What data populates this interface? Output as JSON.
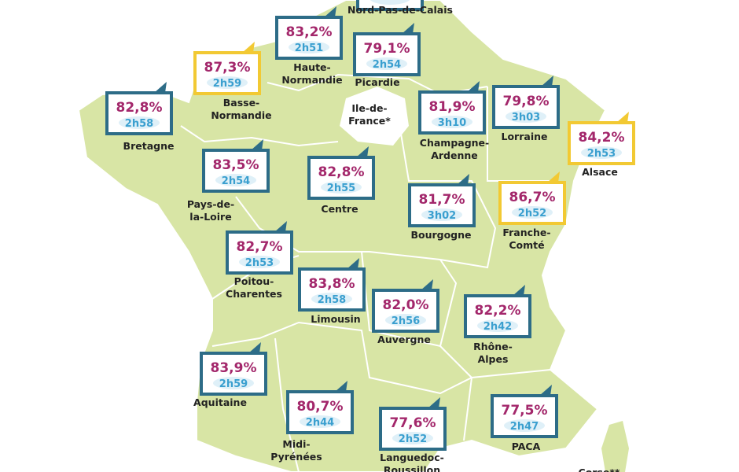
{
  "regions": [
    {
      "name_lines": [
        "Nord-Pas-de-Calais"
      ],
      "frame_color": "#2d6c87"
    },
    {
      "name_lines": [
        "Haute-",
        "Normandie"
      ],
      "percent": "83,2%",
      "time": "2h51",
      "frame_color": "#2d6c87"
    },
    {
      "name_lines": [
        "Picardie"
      ],
      "percent": "79,1%",
      "time": "2h54",
      "frame_color": "#2d6c87"
    },
    {
      "name_lines": [
        "Basse-",
        "Normandie"
      ],
      "percent": "87,3%",
      "time": "2h59",
      "frame_color": "#f2c933"
    },
    {
      "name_lines": [
        "Bretagne"
      ],
      "percent": "82,8%",
      "time": "2h58",
      "frame_color": "#2d6c87"
    },
    {
      "name_lines": [
        "Ile-de-",
        "France*"
      ]
    },
    {
      "name_lines": [
        "Champagne-",
        "Ardenne"
      ],
      "percent": "81,9%",
      "time": "3h10",
      "frame_color": "#2d6c87"
    },
    {
      "name_lines": [
        "Lorraine"
      ],
      "percent": "79,8%",
      "time": "3h03",
      "frame_color": "#2d6c87"
    },
    {
      "name_lines": [
        "Alsace"
      ],
      "percent": "84,2%",
      "time": "2h53",
      "frame_color": "#f2c933"
    },
    {
      "name_lines": [
        "Pays-de-",
        "la-Loire"
      ],
      "percent": "83,5%",
      "time": "2h54",
      "frame_color": "#2d6c87"
    },
    {
      "name_lines": [
        "Centre"
      ],
      "percent": "82,8%",
      "time": "2h55",
      "frame_color": "#2d6c87"
    },
    {
      "name_lines": [
        "Bourgogne"
      ],
      "percent": "81,7%",
      "time": "3h02",
      "frame_color": "#2d6c87"
    },
    {
      "name_lines": [
        "Franche-",
        "Comté"
      ],
      "percent": "86,7%",
      "time": "2h52",
      "frame_color": "#f2c933"
    },
    {
      "name_lines": [
        "Poitou-",
        "Charentes"
      ],
      "percent": "82,7%",
      "time": "2h53",
      "frame_color": "#2d6c87"
    },
    {
      "name_lines": [
        "Limousin"
      ],
      "percent": "83,8%",
      "time": "2h58",
      "frame_color": "#2d6c87"
    },
    {
      "name_lines": [
        "Auvergne"
      ],
      "percent": "82,0%",
      "time": "2h56",
      "frame_color": "#2d6c87"
    },
    {
      "name_lines": [
        "Rhône-",
        "Alpes"
      ],
      "percent": "82,2%",
      "time": "2h42",
      "frame_color": "#2d6c87"
    },
    {
      "name_lines": [
        "Aquitaine"
      ],
      "percent": "83,9%",
      "time": "2h59",
      "frame_color": "#2d6c87"
    },
    {
      "name_lines": [
        "Midi-",
        "Pyrénées"
      ],
      "percent": "80,7%",
      "time": "2h44",
      "frame_color": "#2d6c87"
    },
    {
      "name_lines": [
        "Languedoc-",
        "Roussillon"
      ],
      "percent": "77,6%",
      "time": "2h52",
      "frame_color": "#2d6c87"
    },
    {
      "name_lines": [
        "PACA"
      ],
      "percent": "77,5%",
      "time": "2h47",
      "frame_color": "#2d6c87"
    },
    {
      "name_lines": [
        "Corse**"
      ]
    }
  ]
}
